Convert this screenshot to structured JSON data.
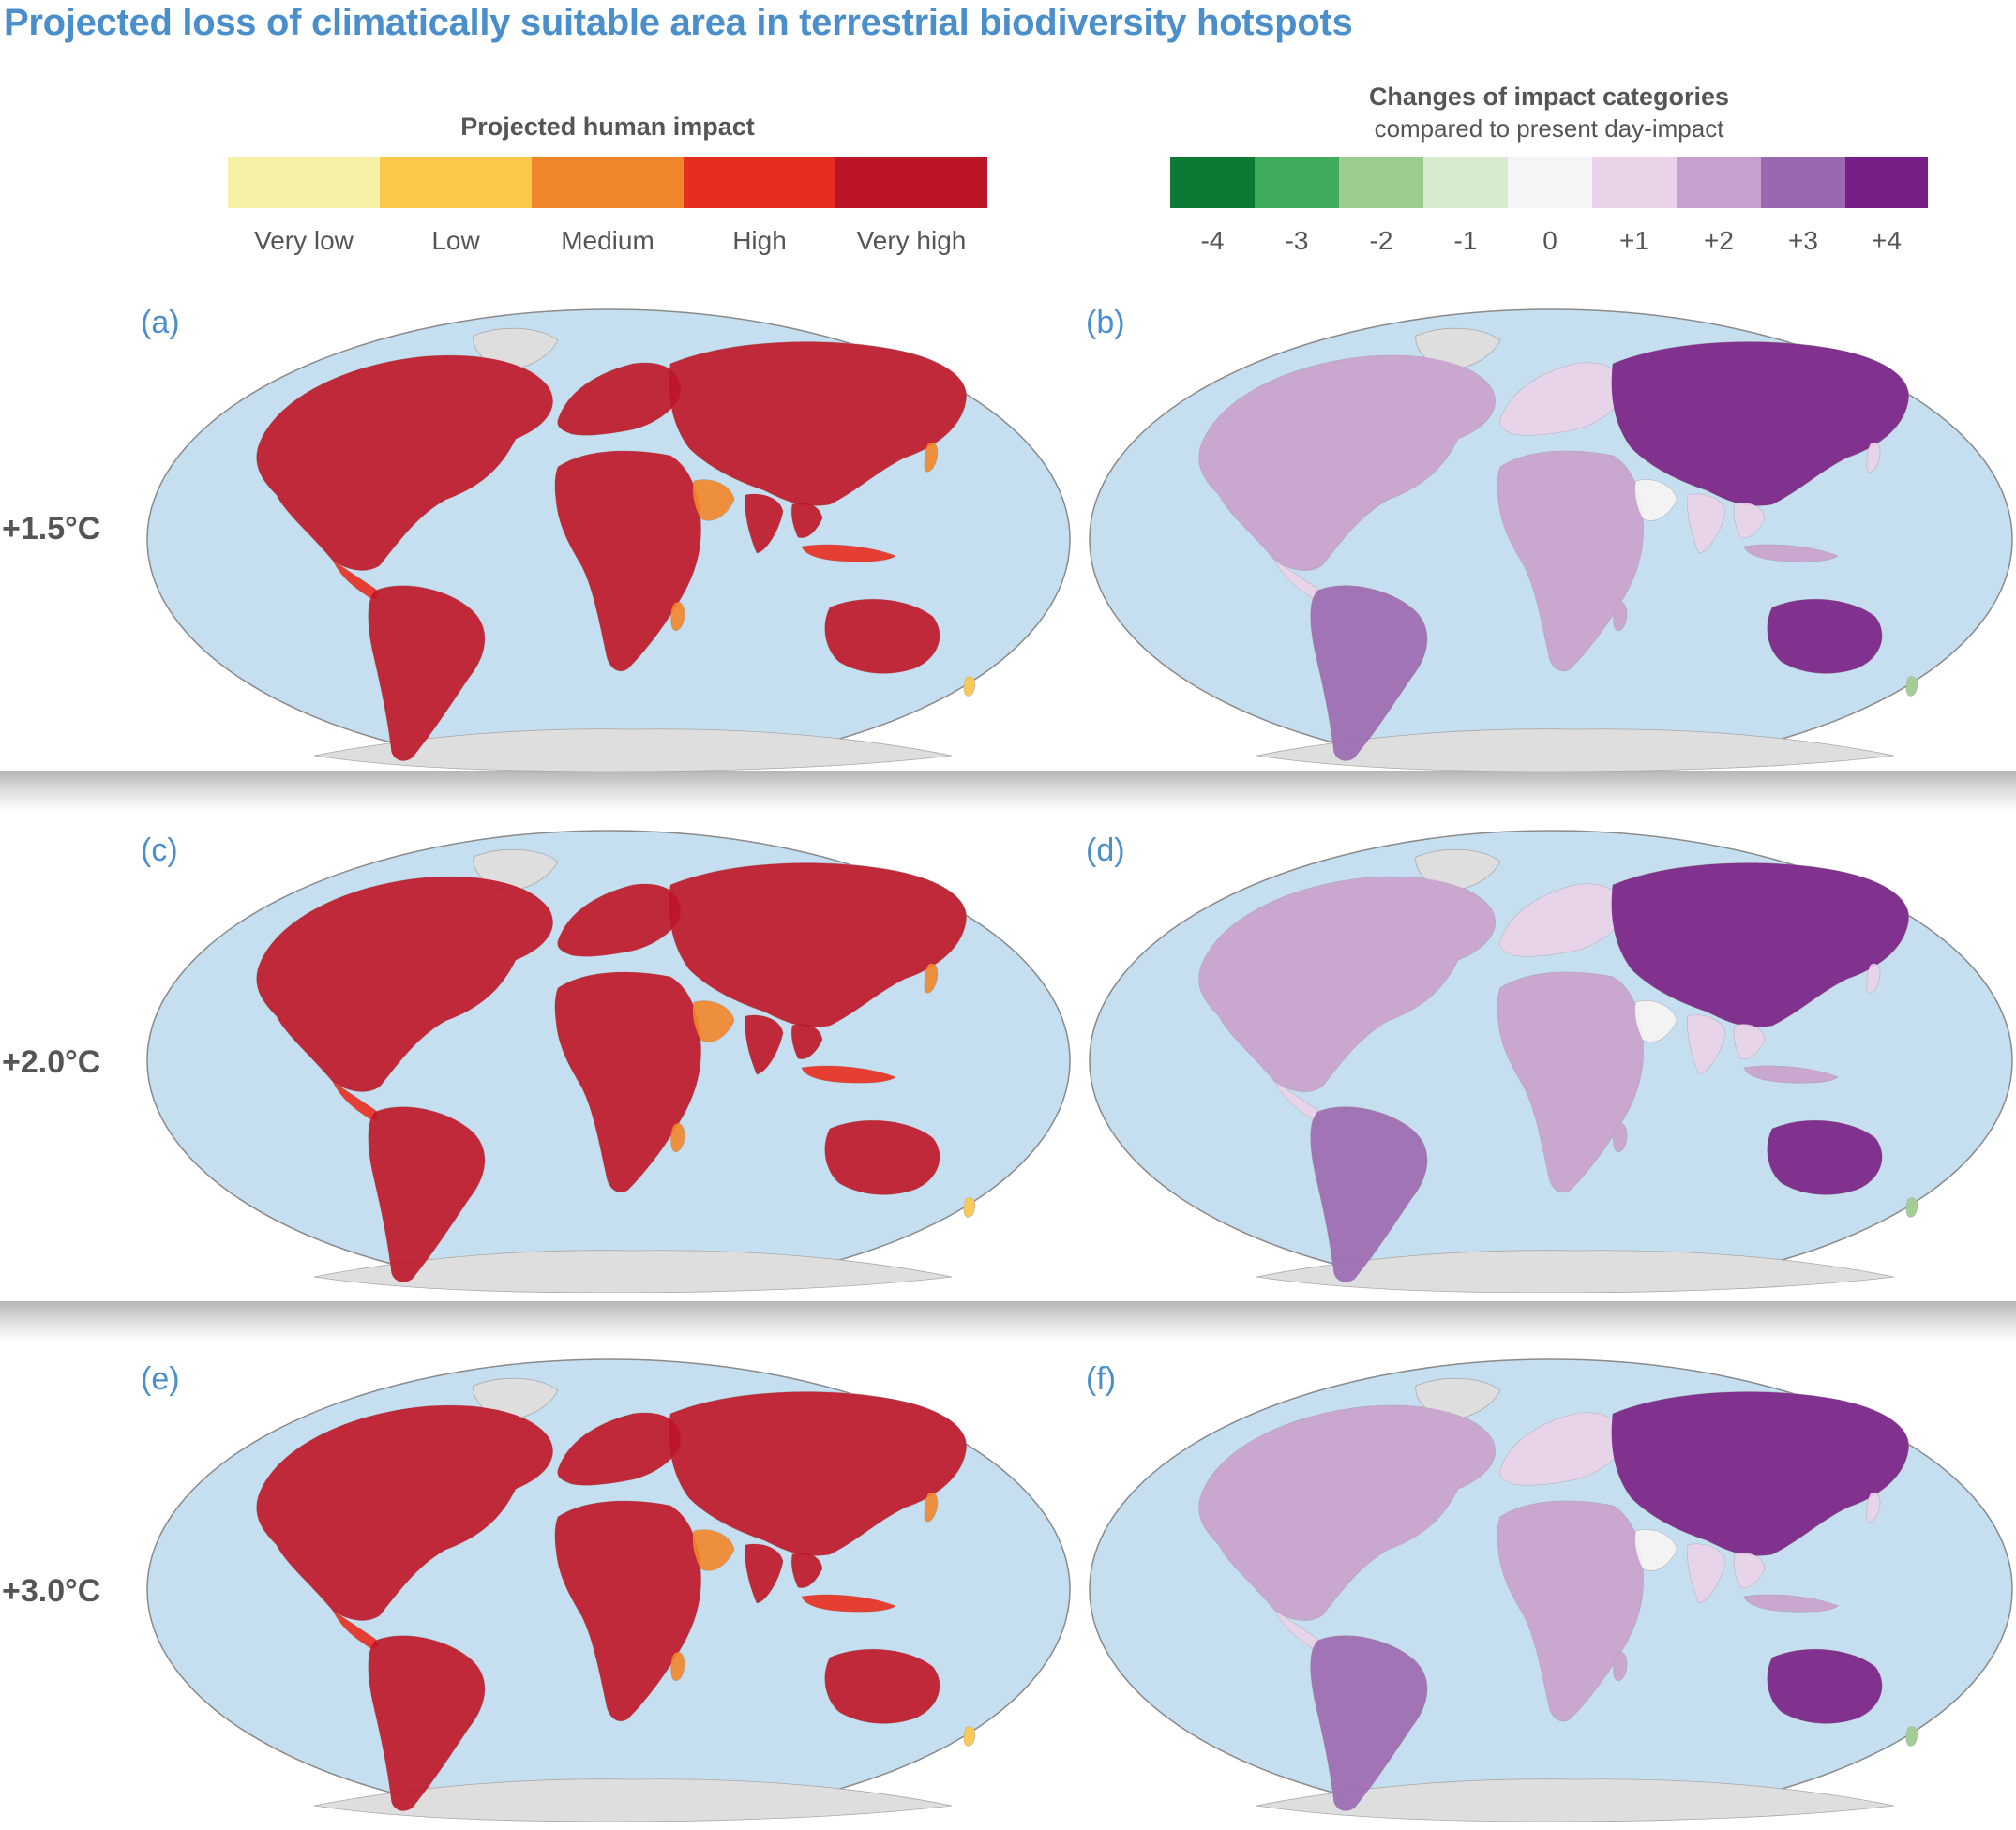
{
  "title": "Projected loss of climatically suitable area in terrestrial biodiversity hotspots",
  "legend_impact": {
    "title": "Projected human impact",
    "items": [
      {
        "label": "Very low",
        "color": "#f5f0a6"
      },
      {
        "label": "Low",
        "color": "#fcc84a"
      },
      {
        "label": "Medium",
        "color": "#f0862c"
      },
      {
        "label": "High",
        "color": "#e52d20"
      },
      {
        "label": "Very high",
        "color": "#bd1528"
      }
    ]
  },
  "legend_change": {
    "title": "Changes of impact categories",
    "subtitle": "compared to present day-impact",
    "items": [
      {
        "label": "-4",
        "color": "#0c7a35"
      },
      {
        "label": "-3",
        "color": "#40ab5b"
      },
      {
        "label": "-2",
        "color": "#9ccd8f"
      },
      {
        "label": "-1",
        "color": "#d6ebd0"
      },
      {
        "label": "0",
        "color": "#f5f5f5"
      },
      {
        "label": "+1",
        "color": "#e9d3e9"
      },
      {
        "label": "+2",
        "color": "#c6a1cd"
      },
      {
        "label": "+3",
        "color": "#9a68b0"
      },
      {
        "label": "+4",
        "color": "#771f86"
      }
    ]
  },
  "rows": [
    {
      "label": "+1.5°C",
      "left_panel": "(a)",
      "right_panel": "(b)"
    },
    {
      "label": "+2.0°C",
      "left_panel": "(c)",
      "right_panel": "(d)"
    },
    {
      "label": "+3.0°C",
      "left_panel": "(e)",
      "right_panel": "(f)"
    }
  ],
  "colors": {
    "ocean": "#c5dff0",
    "land": "#dedede",
    "outline": "#8a8a8a",
    "title": "#4a8fcb"
  }
}
